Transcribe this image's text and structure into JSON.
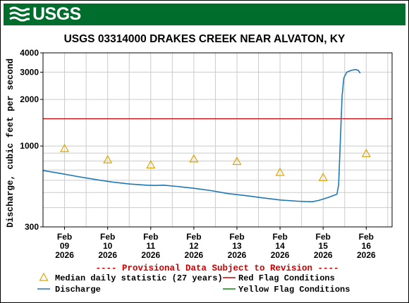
{
  "header": {
    "logo_text": "USGS",
    "banner_color": "#006d2c"
  },
  "chart_data": {
    "type": "line",
    "title": "USGS 03314000 DRAKES CREEK NEAR ALVATON, KY",
    "ylabel": "Discharge, cubic feet per second",
    "y_scale": "log",
    "ylim": [
      300,
      4000
    ],
    "y_ticks": [
      300,
      1000,
      2000,
      3000,
      4000
    ],
    "grid": true,
    "x_ticks": [
      {
        "month": "Feb",
        "day": "09",
        "year": "2026"
      },
      {
        "month": "Feb",
        "day": "10",
        "year": "2026"
      },
      {
        "month": "Feb",
        "day": "11",
        "year": "2026"
      },
      {
        "month": "Feb",
        "day": "12",
        "year": "2026"
      },
      {
        "month": "Feb",
        "day": "13",
        "year": "2026"
      },
      {
        "month": "Feb",
        "day": "14",
        "year": "2026"
      },
      {
        "month": "Feb",
        "day": "15",
        "year": "2026"
      },
      {
        "month": "Feb",
        "day": "16",
        "year": "2026"
      }
    ],
    "xlim_days": [
      8.5,
      16.6
    ],
    "red_flag_value": 1500,
    "median_points": [
      {
        "day": 9,
        "value": 970
      },
      {
        "day": 10,
        "value": 820
      },
      {
        "day": 11,
        "value": 760
      },
      {
        "day": 12,
        "value": 830
      },
      {
        "day": 13,
        "value": 800
      },
      {
        "day": 14,
        "value": 680
      },
      {
        "day": 15,
        "value": 630
      },
      {
        "day": 16,
        "value": 900
      }
    ],
    "discharge": [
      [
        8.5,
        695
      ],
      [
        8.9,
        665
      ],
      [
        9.3,
        635
      ],
      [
        9.7,
        608
      ],
      [
        10.1,
        585
      ],
      [
        10.5,
        568
      ],
      [
        10.9,
        558
      ],
      [
        11.1,
        556
      ],
      [
        11.3,
        558
      ],
      [
        11.6,
        548
      ],
      [
        12.0,
        533
      ],
      [
        12.4,
        515
      ],
      [
        12.8,
        492
      ],
      [
        13.2,
        478
      ],
      [
        13.6,
        462
      ],
      [
        14.0,
        448
      ],
      [
        14.4,
        440
      ],
      [
        14.6,
        437
      ],
      [
        14.75,
        436
      ],
      [
        14.9,
        445
      ],
      [
        15.1,
        463
      ],
      [
        15.25,
        480
      ],
      [
        15.32,
        488
      ],
      [
        15.36,
        560
      ],
      [
        15.4,
        1100
      ],
      [
        15.44,
        2100
      ],
      [
        15.48,
        2750
      ],
      [
        15.55,
        3000
      ],
      [
        15.65,
        3080
      ],
      [
        15.75,
        3120
      ],
      [
        15.82,
        3080
      ],
      [
        15.86,
        2950
      ]
    ],
    "series_colors": {
      "median": "#e0a400",
      "discharge": "#1f77b4",
      "red_flag": "#cc0000",
      "yellow_flag": "#0a8a0a"
    },
    "notice": "---- Provisional Data Subject to Revision ----",
    "notice_color": "#cc0000",
    "legend": {
      "median": "Median daily statistic (27 years)",
      "discharge": "Discharge",
      "red_flag": "Red Flag Conditions",
      "yellow_flag": "Yellow Flag Conditions"
    }
  }
}
